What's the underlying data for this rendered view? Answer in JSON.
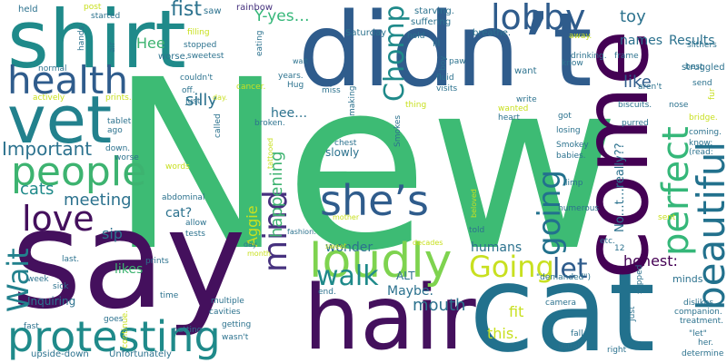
{
  "palette": {
    "c1": "#440154",
    "c2": "#3b528b",
    "c3": "#21918c",
    "c4": "#35b779",
    "c5": "#8fd744",
    "c6": "#fde725",
    "c7": "#472c7a",
    "c8": "#2c728e",
    "c9": "#28ae80",
    "c10": "#c8e020"
  },
  "words": [
    "New",
    "say",
    "hair",
    "cat",
    "didn’t",
    "come",
    "shirt",
    "vet",
    "health",
    "people",
    "protesting",
    "loudly",
    "she’s",
    "lobby",
    "beautiful",
    "perfect",
    "love",
    "mind",
    "Wait",
    "Going",
    "going",
    "walk",
    "let",
    "Chomp",
    "fist",
    "Important",
    "happening",
    "meeting",
    "mouth",
    "cats",
    "silly",
    "Y-yes…",
    "toy",
    "names",
    "Results",
    "honest:",
    "like",
    "Aggie",
    "Hee",
    "hee…",
    "wonder",
    "humans",
    "Maybe.",
    "this.",
    "fit",
    "likes",
    "sip",
    "cat?",
    "No…t…really??",
    "Inquiring",
    "slowly",
    "ALT",
    "minds",
    "upside-down",
    "Unfortunately",
    "rainbow",
    "saw",
    "post",
    "started",
    "held",
    "struggled",
    "slithers",
    "frame",
    "breathe.",
    "lil",
    "starving.",
    "suffering",
    "Saturday",
    "worse.",
    "eating",
    "hands",
    "air",
    "normal",
    "actively",
    "prints.",
    "tablet",
    "ago",
    "down.",
    "worse",
    "sick",
    "week",
    "fast",
    "last.",
    "cavities",
    "multiple",
    "getting",
    "putting",
    "wasn't",
    "goes",
    "continue.",
    "time",
    "prints",
    "month",
    "day",
    "allow",
    "tests",
    "abdominal",
    "words",
    "tattooed",
    "called",
    "broken.",
    "couldn't",
    "just",
    "off.",
    "day.",
    "stopped",
    "sweetest",
    "filling",
    "cancer.",
    "Hug",
    "years.",
    "wait",
    "miss",
    "chest",
    "mother",
    "making",
    "fashion.",
    "sweet",
    "end.",
    "decades",
    "told",
    "beloved",
    "numerous",
    "Smokes",
    "thing",
    "dislikes",
    "treatment.",
    "companion.",
    "\"demanded\")",
    "camera",
    "slipped",
    "fall",
    "right",
    "Just",
    "usual",
    "\"let\"",
    "her.",
    "determine",
    "bridge.",
    "purred",
    "got",
    "losing",
    "Smokey",
    "babies.",
    "coming.",
    "know:",
    "(read:",
    "nose",
    "sent",
    "fur",
    "send",
    "aren't",
    "best",
    "know",
    "away.",
    "paw",
    "boy",
    "fluid",
    "visits",
    "drinking.",
    "hold",
    "want",
    "write",
    "wanted",
    "heart",
    "biscuits.",
    "limp",
    "etc.",
    "12",
    "sip.",
    "hold"
  ]
}
